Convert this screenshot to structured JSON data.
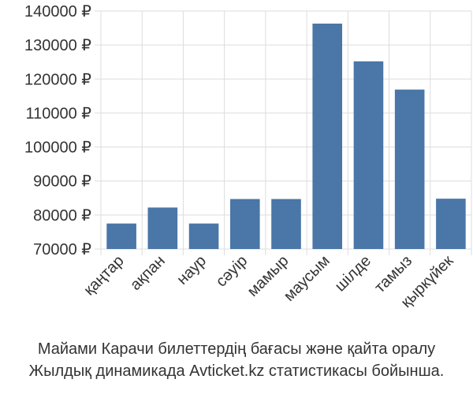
{
  "chart_data": {
    "type": "bar",
    "categories": [
      "қаңтар",
      "ақпан",
      "наур",
      "сәуір",
      "мамыр",
      "маусым",
      "шілде",
      "тамыз",
      "қыркүйек"
    ],
    "values": [
      77500,
      82200,
      77500,
      84700,
      84700,
      136300,
      125200,
      116900,
      84800
    ],
    "ylim": [
      70000,
      140000
    ],
    "y_ticks": [
      70000,
      80000,
      90000,
      100000,
      110000,
      120000,
      130000,
      140000
    ],
    "y_tick_labels": [
      "70000 ₽",
      "80000 ₽",
      "90000 ₽",
      "100000 ₽",
      "110000 ₽",
      "120000 ₽",
      "130000 ₽",
      "140000 ₽"
    ],
    "bar_color": "#4a76a8",
    "grid": true,
    "title": "",
    "xlabel": "",
    "ylabel": ""
  },
  "caption": {
    "line1": "Майами Карачи билеттердің бағасы және қайта оралу",
    "line2": "Жылдық динамикада Avticket.kz статистикасы бойынша."
  }
}
